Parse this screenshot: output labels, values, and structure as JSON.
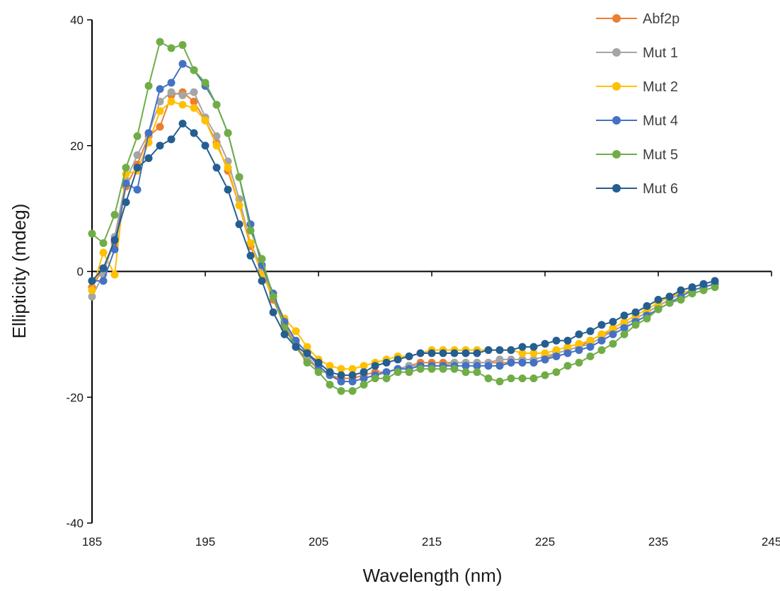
{
  "chart_data": {
    "type": "line",
    "xlabel": "Wavelength (nm)",
    "ylabel": "Ellipticity (mdeg)",
    "xlim": [
      185,
      245
    ],
    "ylim": [
      -40,
      40
    ],
    "xticks": [
      185,
      195,
      205,
      215,
      225,
      235,
      245
    ],
    "yticks": [
      -40,
      -20,
      0,
      20,
      40
    ],
    "legend_position": "top-right",
    "grid": false,
    "x": [
      185,
      186,
      187,
      188,
      189,
      190,
      191,
      192,
      193,
      194,
      195,
      196,
      197,
      198,
      199,
      200,
      201,
      202,
      203,
      204,
      205,
      206,
      207,
      208,
      209,
      210,
      211,
      212,
      213,
      214,
      215,
      216,
      217,
      218,
      219,
      220,
      221,
      222,
      223,
      224,
      225,
      226,
      227,
      228,
      229,
      230,
      231,
      232,
      233,
      234,
      235,
      236,
      237,
      238,
      239,
      240
    ],
    "series": [
      {
        "name": "Abf2p",
        "color": "#ED7D31",
        "values": [
          -2.5,
          0.5,
          4.5,
          13.5,
          17.0,
          21.5,
          23.0,
          28.0,
          28.5,
          27.0,
          24.0,
          20.5,
          16.0,
          10.5,
          4.0,
          0.0,
          -4.5,
          -8.5,
          -12.0,
          -14.0,
          -15.5,
          -16.5,
          -17.0,
          -17.0,
          -16.5,
          -16.0,
          -16.0,
          -15.5,
          -15.0,
          -14.5,
          -14.5,
          -14.5,
          -14.5,
          -14.5,
          -14.5,
          -14.5,
          -14.5,
          -14.5,
          -14.5,
          -14.5,
          -14.0,
          -13.0,
          -12.5,
          -12.0,
          -11.0,
          -10.0,
          -9.5,
          -8.5,
          -7.5,
          -6.5,
          -5.5,
          -4.5,
          -3.5,
          -3.0,
          -2.5,
          -2.0
        ]
      },
      {
        "name": "Mut 1",
        "color": "#A5A5A5",
        "values": [
          -4.0,
          -0.5,
          5.5,
          14.5,
          18.5,
          22.0,
          27.0,
          28.5,
          28.0,
          28.5,
          24.5,
          21.5,
          17.5,
          11.5,
          4.5,
          0.5,
          -4.0,
          -8.0,
          -11.5,
          -13.5,
          -15.5,
          -16.5,
          -17.5,
          -17.5,
          -17.0,
          -16.5,
          -16.0,
          -15.5,
          -15.0,
          -15.0,
          -15.0,
          -15.0,
          -14.5,
          -14.5,
          -14.5,
          -14.5,
          -14.0,
          -14.0,
          -14.0,
          -14.0,
          -13.5,
          -13.0,
          -12.5,
          -12.0,
          -11.5,
          -10.5,
          -9.5,
          -8.5,
          -7.5,
          -6.5,
          -5.5,
          -4.5,
          -3.5,
          -3.0,
          -2.5,
          -2.0
        ]
      },
      {
        "name": "Mut 2",
        "color": "#FFC000",
        "values": [
          -3.0,
          3.0,
          -0.5,
          15.5,
          16.0,
          20.5,
          25.5,
          27.0,
          26.5,
          26.0,
          24.0,
          20.0,
          16.5,
          10.5,
          4.5,
          -0.5,
          -4.0,
          -7.5,
          -9.5,
          -12.0,
          -14.0,
          -15.0,
          -15.5,
          -15.5,
          -15.0,
          -14.5,
          -14.0,
          -13.5,
          -13.5,
          -13.0,
          -12.5,
          -12.5,
          -12.5,
          -12.5,
          -12.5,
          -12.5,
          -12.5,
          -12.5,
          -13.0,
          -13.0,
          -13.0,
          -12.5,
          -12.0,
          -11.5,
          -11.0,
          -10.0,
          -9.0,
          -8.0,
          -7.0,
          -6.0,
          -5.0,
          -4.0,
          -3.5,
          -3.0,
          -2.5,
          -2.0
        ]
      },
      {
        "name": "Mut 4",
        "color": "#4472C4",
        "values": [
          -1.5,
          -1.5,
          3.5,
          14.0,
          13.0,
          22.0,
          29.0,
          30.0,
          33.0,
          32.0,
          29.5,
          26.5,
          22.0,
          15.0,
          7.5,
          1.0,
          -3.5,
          -8.0,
          -11.0,
          -13.0,
          -15.0,
          -16.5,
          -17.5,
          -17.5,
          -17.0,
          -16.5,
          -16.0,
          -15.5,
          -15.5,
          -15.0,
          -15.0,
          -15.0,
          -15.0,
          -15.0,
          -15.0,
          -15.0,
          -15.0,
          -14.5,
          -14.5,
          -14.5,
          -14.0,
          -13.5,
          -13.0,
          -12.5,
          -12.0,
          -11.0,
          -10.0,
          -9.0,
          -8.0,
          -7.0,
          -6.0,
          -5.0,
          -4.0,
          -3.0,
          -2.5,
          -2.0
        ]
      },
      {
        "name": "Mut 5",
        "color": "#70AD47",
        "values": [
          6.0,
          4.5,
          9.0,
          16.5,
          21.5,
          29.5,
          36.5,
          35.5,
          36.0,
          32.0,
          30.0,
          26.5,
          22.0,
          15.0,
          6.5,
          2.0,
          -4.0,
          -9.0,
          -12.0,
          -14.5,
          -16.0,
          -18.0,
          -19.0,
          -19.0,
          -18.0,
          -17.0,
          -17.0,
          -16.0,
          -16.0,
          -15.5,
          -15.5,
          -15.5,
          -15.5,
          -16.0,
          -16.0,
          -17.0,
          -17.5,
          -17.0,
          -17.0,
          -17.0,
          -16.5,
          -16.0,
          -15.0,
          -14.5,
          -13.5,
          -12.5,
          -11.5,
          -10.0,
          -8.5,
          -7.5,
          -6.0,
          -5.0,
          -4.5,
          -3.5,
          -3.0,
          -2.5
        ]
      },
      {
        "name": "Mut 6",
        "color": "#255E91",
        "values": [
          -1.5,
          0.5,
          5.0,
          11.0,
          16.5,
          18.0,
          20.0,
          21.0,
          23.5,
          22.0,
          20.0,
          16.5,
          13.0,
          7.5,
          2.5,
          -1.5,
          -6.5,
          -10.0,
          -12.0,
          -13.0,
          -14.5,
          -16.0,
          -16.5,
          -16.5,
          -16.0,
          -15.0,
          -14.5,
          -14.0,
          -13.5,
          -13.0,
          -13.0,
          -13.0,
          -13.0,
          -13.0,
          -13.0,
          -12.5,
          -12.5,
          -12.5,
          -12.0,
          -12.0,
          -11.5,
          -11.0,
          -11.0,
          -10.0,
          -9.5,
          -8.5,
          -8.0,
          -7.0,
          -6.5,
          -5.5,
          -4.5,
          -4.0,
          -3.0,
          -2.5,
          -2.0,
          -1.5
        ]
      }
    ]
  }
}
